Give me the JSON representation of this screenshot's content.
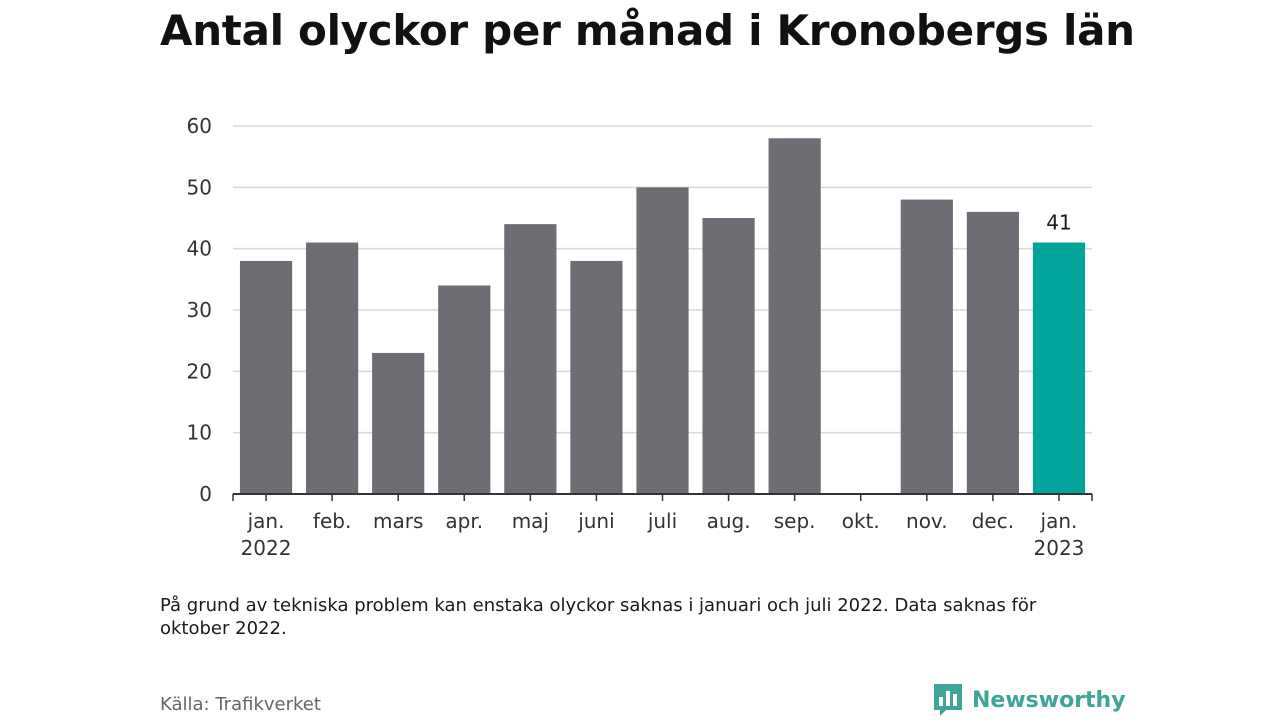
{
  "title": "Antal olyckor per månad i Kronobergs län",
  "note": "På grund av tekniska problem kan enstaka olyckor saknas i januari och juli 2022. Data saknas för oktober 2022.",
  "source": "Källa: Trafikverket",
  "brand": {
    "name": "Newsworthy",
    "icon": "newsworthy-logo-icon"
  },
  "colors": {
    "bar": "#6e6d73",
    "highlight": "#00a49a",
    "grid": "#d9d9d9",
    "axis": "#333333"
  },
  "chart_data": {
    "type": "bar",
    "categories": [
      [
        "jan.",
        "2022"
      ],
      [
        "feb."
      ],
      [
        "mars"
      ],
      [
        "apr."
      ],
      [
        "maj"
      ],
      [
        "juni"
      ],
      [
        "juli"
      ],
      [
        "aug."
      ],
      [
        "sep."
      ],
      [
        "okt."
      ],
      [
        "nov."
      ],
      [
        "dec."
      ],
      [
        "jan.",
        "2023"
      ]
    ],
    "values": [
      38,
      41,
      23,
      34,
      44,
      38,
      50,
      45,
      58,
      null,
      48,
      46,
      41
    ],
    "highlight_index": 12,
    "data_labels": [
      {
        "index": 12,
        "text": "41"
      }
    ],
    "ylim": [
      0,
      60
    ],
    "yticks": [
      0,
      10,
      20,
      30,
      40,
      50,
      60
    ],
    "grid": true,
    "legend": "none"
  }
}
